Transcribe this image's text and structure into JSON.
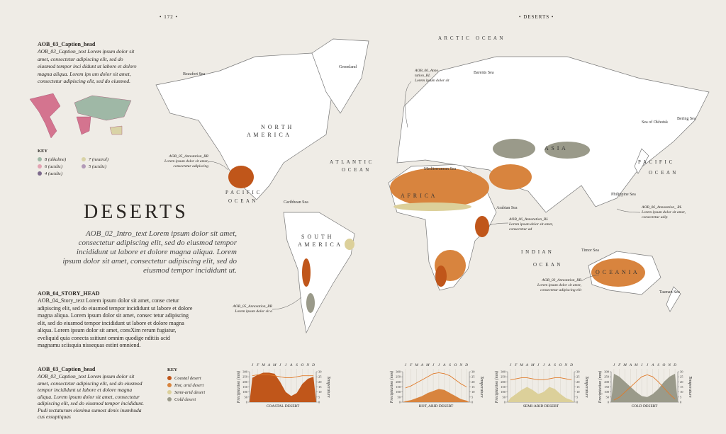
{
  "header": {
    "page_number": "• 172 •",
    "section": "• DESERTS •"
  },
  "title": "DESERTS",
  "intro": "AOB_02_Intro_text Lorem ipsum dolor sit amet, consectetur adipiscing elit, sed do eiusmod tempor incididunt ut labore et dolore magna aliqua. Lorem ipsum dolor sit amet, consectetur adipiscing elit, sed do eiusmod tempor incididunt ut.",
  "caption_top": {
    "head": "AOB_03_Caption_head",
    "text": "AOB_03_Caption_text Lorem ipsum dolor sit amet, consectetur adipiscing elit, sed do eiusmod tempor inci didunt ut labore et dolore magna aliqua. Lorem ips um dolor sit amet, consectetur adipiscing elit, sed do eiusmod."
  },
  "inset_key": {
    "title": "KEY",
    "items": [
      {
        "label": "8 (alkaline)",
        "color": "#9fb8a6"
      },
      {
        "label": "7 (neutral)",
        "color": "#d9d3a6"
      },
      {
        "label": "6 (acidic)",
        "color": "#e3a3b3"
      },
      {
        "label": "5 (acidic)",
        "color": "#b29ab8"
      },
      {
        "label": "4 (acidic)",
        "color": "#7d6a8c"
      }
    ]
  },
  "story": {
    "head": "AOB_04_STORY_HEAD",
    "text": "AOB_04_Story_text Lorem ipsum dolor sit amet, conse ctetur adipiscing elit, sed do eiusmod tempor incididunt ut labore et dolore magna aliqua. Lorem ipsum dolor sit amet, consec tetur adipiscing elit, sed do eiusmod tempor incididunt ut labore et dolore magna aliqua. Lorem ipsum dolor sit amet, consXim rerum fugiatur, eveliquid quia conecta ssitiunt omnim quodige nditiis acid magnamu sciisquia nissequas estint omniend."
  },
  "caption_bottom": {
    "head": "AOB_03_Caption_head",
    "text": "AOB_03_Caption_text Lorem ipsum dolor sit amet, consectetur adipiscing elit, sed do eiusmod tempor incididunt ut labore et dolore magna aliqua. Lorem ipsum dolor sit amet, consectetur adipiscing elit, sed do eiusmod tempor incididunt. Pudi tectaturum elenima sumost denis inumbuda cus essuptiquas"
  },
  "desert_key": {
    "title": "KEY",
    "items": [
      {
        "label": "Coastal desert",
        "color": "#c0561a"
      },
      {
        "label": "Hot, arid desert",
        "color": "#d8843e"
      },
      {
        "label": "Semi-arid desert",
        "color": "#dcd09a"
      },
      {
        "label": "Cold desert",
        "color": "#9a9a8a"
      }
    ]
  },
  "map_labels": [
    "A R C T I C   O C E A N",
    "N O R T H",
    "A M E R I C A",
    "A T L A N T I C",
    "O C E A N",
    "P A C I F I C",
    "O C E A N",
    "S O U T H",
    "A M E R I C A",
    "A F R I C A",
    "A S I A",
    "I N D I A N",
    "O C E A N",
    "O C E A N I A",
    "P A C I F I C",
    "O C E A N",
    "Beaufort Sea",
    "Greenland",
    "Barents Sea",
    "Caribbean Sea",
    "Mediterranean Sea",
    "Arabian Sea",
    "Philippine Sea",
    "Timor Sea",
    "Tasman Sea",
    "Sea of Okhotsk",
    "Bering Sea"
  ],
  "annotations": [
    {
      "head": "AOB_06_Anno tation_RL",
      "text": "Lorem ipsum dolor sit"
    },
    {
      "head": "AOB_05_Annotation_RR",
      "text": "Lorem ipsum dolor sit amet, consectetur adipiscing"
    },
    {
      "head": "AOB_06_Annotation_RL",
      "text": "Lorem ipsum dolor sit amet, consectetur ad"
    },
    {
      "head": "AOB_06_Annotation_ RL",
      "text": "Lorem ipsum dolor sit amet, consectetur adip"
    },
    {
      "head": "AOB_05_Annotation_RR",
      "text": "Lorem ipsum dolor sit a"
    },
    {
      "head": "AOB_03_Annotation_RR",
      "text": "Lorem ipsum dolor sit amet, consectetur adipiscing elit"
    }
  ],
  "climate_charts": [
    {
      "title": "COASTAL DESERT",
      "months": [
        "J",
        "F",
        "M",
        "A",
        "M",
        "J",
        "J",
        "A",
        "S",
        "O",
        "N",
        "D"
      ],
      "y_label": "Precipitation (mm)",
      "y2_label": "Temperature",
      "ylim": [
        0,
        300
      ],
      "yticks": [
        0,
        50,
        100,
        150,
        200,
        250,
        300
      ],
      "y2lim": [
        0,
        30
      ],
      "y2ticks": [
        0,
        5,
        10,
        15,
        20,
        25,
        30
      ],
      "precipitation_color": "#c0561a",
      "temperature_color": "#e07b2a",
      "precipitation": [
        240,
        270,
        290,
        290,
        280,
        200,
        100,
        60,
        90,
        180,
        230,
        250
      ],
      "temperature": [
        26,
        27,
        27,
        27,
        26,
        25,
        24,
        24,
        25,
        26,
        26,
        26
      ]
    },
    {
      "title": "HOT, ARID DESERT",
      "months": [
        "J",
        "F",
        "M",
        "A",
        "M",
        "J",
        "J",
        "A",
        "S",
        "O",
        "N",
        "D"
      ],
      "y_label": "Precipitation (mm)",
      "y2_label": "Temperature",
      "ylim": [
        0,
        300
      ],
      "yticks": [
        0,
        50,
        100,
        150,
        200,
        250,
        300
      ],
      "y2lim": [
        0,
        30
      ],
      "y2ticks": [
        0,
        5,
        10,
        15,
        20,
        25,
        30
      ],
      "precipitation_color": "#d8843e",
      "temperature_color": "#e07b2a",
      "precipitation": [
        10,
        20,
        40,
        60,
        90,
        110,
        130,
        120,
        90,
        60,
        30,
        15
      ],
      "temperature": [
        14,
        16,
        19,
        22,
        25,
        28,
        29,
        28,
        26,
        22,
        18,
        15
      ]
    },
    {
      "title": "SEMI-ARID DESERT",
      "months": [
        "J",
        "F",
        "M",
        "A",
        "M",
        "J",
        "J",
        "A",
        "S",
        "O",
        "N",
        "D"
      ],
      "y_label": "Precipitation (mm)",
      "y2_label": "Temperature",
      "ylim": [
        0,
        300
      ],
      "yticks": [
        0,
        50,
        100,
        150,
        200,
        250,
        300
      ],
      "y2lim": [
        0,
        30
      ],
      "y2ticks": [
        0,
        5,
        10,
        15,
        20,
        25,
        30
      ],
      "precipitation_color": "#dcd09a",
      "temperature_color": "#e07b2a",
      "precipitation": [
        40,
        80,
        120,
        150,
        120,
        80,
        100,
        150,
        130,
        80,
        40,
        20
      ],
      "temperature": [
        22,
        23,
        24,
        24,
        23,
        22,
        22,
        23,
        24,
        24,
        23,
        22
      ]
    },
    {
      "title": "COLD DESERT",
      "months": [
        "J",
        "F",
        "M",
        "A",
        "M",
        "J",
        "J",
        "A",
        "S",
        "O",
        "N",
        "D"
      ],
      "y_label": "Precipitation (mm)",
      "y2_label": "Temperature",
      "ylim": [
        0,
        300
      ],
      "yticks": [
        0,
        50,
        100,
        150,
        200,
        250,
        300
      ],
      "y2lim": [
        0,
        30
      ],
      "y2ticks": [
        0,
        5,
        10,
        15,
        20,
        25,
        30
      ],
      "precipitation_color": "#9a9a8a",
      "temperature_color": "#e07b2a",
      "precipitation": [
        280,
        250,
        200,
        150,
        100,
        60,
        50,
        80,
        130,
        200,
        250,
        280
      ],
      "temperature": [
        2,
        5,
        10,
        15,
        20,
        25,
        27,
        25,
        20,
        14,
        8,
        3
      ]
    }
  ]
}
